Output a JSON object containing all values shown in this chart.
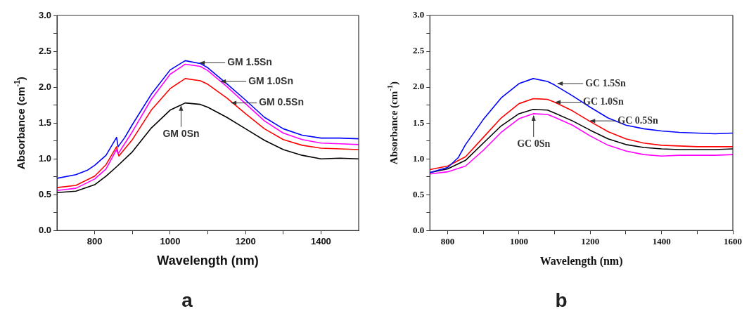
{
  "chart_data": [
    {
      "type": "line",
      "xlabel": "Wavelength (nm)",
      "ylabel": "Absorbance (cm$^{-1}$)",
      "xlim": [
        700,
        1500
      ],
      "ylim": [
        0,
        3.0
      ],
      "xticks": [
        800,
        {
          "value": 900,
          "label": null
        },
        1000,
        {
          "value": 1100,
          "label": null
        },
        1200,
        {
          "value": 1300,
          "label": null
        },
        1400
      ],
      "yticks": [
        {
          "value": 0,
          "label": "0.0"
        },
        {
          "value": 0.25,
          "label": null
        },
        0.5,
        {
          "value": 0.75,
          "label": null
        },
        {
          "value": 1,
          "label": "1.0"
        },
        {
          "value": 1.25,
          "label": null
        },
        1.5,
        {
          "value": 1.75,
          "label": null
        },
        {
          "value": 2,
          "label": "2.0"
        },
        {
          "value": 2.25,
          "label": null
        },
        2.5,
        {
          "value": 2.75,
          "label": null
        },
        {
          "value": 3,
          "label": "3.0"
        }
      ],
      "grid": false,
      "legend": false,
      "marker": "none",
      "line_style": "solid",
      "series": [
        {
          "color": "#0000ff",
          "x": [
            700,
            750,
            780,
            800,
            830,
            858,
            862,
            880,
            900,
            950,
            1000,
            1040,
            1080,
            1100,
            1150,
            1200,
            1250,
            1300,
            1350,
            1400,
            1450,
            1500
          ],
          "values": [
            0.73,
            0.78,
            0.84,
            0.91,
            1.05,
            1.3,
            1.17,
            1.3,
            1.48,
            1.9,
            2.24,
            2.37,
            2.33,
            2.27,
            2.05,
            1.82,
            1.58,
            1.42,
            1.33,
            1.29,
            1.29,
            1.28
          ]
        },
        {
          "color": "#ff00ff",
          "x": [
            700,
            750,
            800,
            830,
            858,
            862,
            900,
            950,
            1000,
            1040,
            1080,
            1100,
            1150,
            1200,
            1250,
            1300,
            1350,
            1400,
            1450,
            1500
          ],
          "values": [
            0.56,
            0.59,
            0.72,
            0.86,
            1.13,
            1.07,
            1.38,
            1.83,
            2.18,
            2.32,
            2.29,
            2.23,
            2.01,
            1.77,
            1.53,
            1.36,
            1.27,
            1.22,
            1.21,
            1.2
          ]
        },
        {
          "color": "#ff0000",
          "x": [
            700,
            750,
            800,
            830,
            858,
            864,
            900,
            950,
            1000,
            1040,
            1080,
            1100,
            1150,
            1200,
            1250,
            1300,
            1350,
            1400,
            1450,
            1500
          ],
          "values": [
            0.6,
            0.63,
            0.76,
            0.92,
            1.17,
            1.04,
            1.27,
            1.68,
            1.98,
            2.12,
            2.09,
            2.04,
            1.85,
            1.63,
            1.42,
            1.27,
            1.19,
            1.15,
            1.14,
            1.13
          ]
        },
        {
          "color": "#000000",
          "x": [
            700,
            750,
            800,
            830,
            860,
            900,
            950,
            1000,
            1040,
            1080,
            1100,
            1150,
            1200,
            1250,
            1300,
            1350,
            1400,
            1450,
            1500
          ],
          "values": [
            0.53,
            0.55,
            0.64,
            0.76,
            0.9,
            1.1,
            1.43,
            1.68,
            1.78,
            1.76,
            1.72,
            1.58,
            1.42,
            1.26,
            1.13,
            1.05,
            1.0,
            1.01,
            1.0
          ]
        }
      ],
      "annotations": [
        {
          "text": "GM 1.5Sn",
          "x": 1075,
          "y": 2.34
        },
        {
          "text": "GM 1.0Sn",
          "x": 1131,
          "y": 2.08
        },
        {
          "text": "GM 0.5Sn",
          "x": 1159,
          "y": 1.78
        },
        {
          "text": "GM 0Sn",
          "x": 1029,
          "y": 1.76
        },
        "a"
      ]
    },
    {
      "type": "line",
      "xlabel": "Wavelength (nm)",
      "ylabel": "Absorbance (cm$^{-1}$)",
      "xlim": [
        750,
        1600
      ],
      "ylim": [
        0,
        3.0
      ],
      "xticks": [
        800,
        {
          "value": 900,
          "label": null
        },
        1000,
        {
          "value": 1100,
          "label": null
        },
        1200,
        {
          "value": 1300,
          "label": null
        },
        1400,
        {
          "value": 1500,
          "label": null
        },
        1600
      ],
      "yticks": [
        {
          "value": 0,
          "label": "0.0"
        },
        {
          "value": 0.25,
          "label": null
        },
        0.5,
        {
          "value": 0.75,
          "label": null
        },
        {
          "value": 1,
          "label": "1.0"
        },
        {
          "value": 1.25,
          "label": null
        },
        1.5,
        {
          "value": 1.75,
          "label": null
        },
        {
          "value": 2,
          "label": "2.0"
        },
        {
          "value": 2.25,
          "label": null
        },
        2.5,
        {
          "value": 2.75,
          "label": null
        },
        {
          "value": 3,
          "label": "3.0"
        }
      ],
      "grid": false,
      "legend": false,
      "marker": "none",
      "line_style": "solid",
      "series": [
        {
          "color": "#0000ff",
          "x": [
            750,
            800,
            830,
            850,
            900,
            950,
            1000,
            1040,
            1080,
            1100,
            1150,
            1200,
            1250,
            1300,
            1350,
            1400,
            1450,
            1500,
            1550,
            1600
          ],
          "values": [
            0.81,
            0.88,
            1.02,
            1.2,
            1.55,
            1.85,
            2.05,
            2.12,
            2.08,
            2.03,
            1.88,
            1.72,
            1.57,
            1.47,
            1.42,
            1.39,
            1.37,
            1.36,
            1.35,
            1.36
          ]
        },
        {
          "color": "#ff0000",
          "x": [
            750,
            800,
            850,
            900,
            950,
            1000,
            1040,
            1080,
            1100,
            1150,
            1200,
            1250,
            1300,
            1350,
            1400,
            1450,
            1500,
            1550,
            1600
          ],
          "values": [
            0.85,
            0.9,
            1.03,
            1.3,
            1.57,
            1.77,
            1.84,
            1.83,
            1.79,
            1.67,
            1.52,
            1.38,
            1.28,
            1.22,
            1.19,
            1.18,
            1.17,
            1.17,
            1.17
          ]
        },
        {
          "color": "#000000",
          "x": [
            750,
            800,
            850,
            900,
            950,
            1000,
            1040,
            1080,
            1100,
            1150,
            1200,
            1250,
            1300,
            1350,
            1400,
            1450,
            1500,
            1550,
            1600
          ],
          "values": [
            0.81,
            0.86,
            0.98,
            1.22,
            1.46,
            1.63,
            1.69,
            1.68,
            1.64,
            1.53,
            1.4,
            1.28,
            1.2,
            1.16,
            1.14,
            1.13,
            1.13,
            1.13,
            1.14
          ]
        },
        {
          "color": "#ff00ff",
          "x": [
            750,
            800,
            850,
            900,
            950,
            1000,
            1040,
            1080,
            1100,
            1150,
            1200,
            1250,
            1300,
            1350,
            1400,
            1450,
            1500,
            1550,
            1600
          ],
          "values": [
            0.79,
            0.82,
            0.9,
            1.12,
            1.37,
            1.56,
            1.63,
            1.62,
            1.58,
            1.47,
            1.32,
            1.19,
            1.11,
            1.06,
            1.04,
            1.05,
            1.05,
            1.05,
            1.06
          ]
        }
      ],
      "annotations": [
        {
          "text": "GC 1.5Sn",
          "x": 1105,
          "y": 2.05
        },
        {
          "text": "GC 1.0Sn",
          "x": 1099,
          "y": 1.79
        },
        {
          "text": "GC 0.5Sn",
          "x": 1196,
          "y": 1.53
        },
        {
          "text": "GC 0Sn",
          "x": 1041,
          "y": 1.62
        },
        "b"
      ]
    }
  ]
}
